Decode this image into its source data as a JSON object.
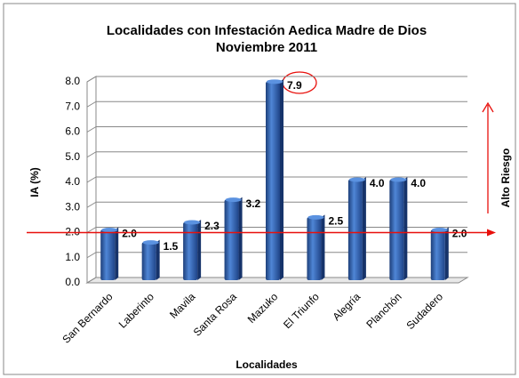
{
  "chart_data": {
    "type": "bar",
    "title": "Localidades con Infestación Aedica Madre de Dios",
    "subtitle": "Noviembre 2011",
    "x_label": "Localidades",
    "y_label": "IA (%)",
    "categories": [
      "San Bernardo",
      "Laberinto",
      "Mavila",
      "Santa Rosa",
      "Mazuko",
      "El Triunfo",
      "Alegría",
      "Planchón",
      "Sudadero"
    ],
    "values": [
      2.0,
      1.5,
      2.3,
      3.2,
      7.9,
      2.5,
      4.0,
      4.0,
      2.0
    ],
    "value_labels": [
      "2.0",
      "1.5",
      "2.3",
      "3.2",
      "7.9",
      "2.5",
      "4.0",
      "4.0",
      "2.0"
    ],
    "color": "#2e5fae",
    "ylim": [
      0,
      8
    ],
    "yticks": [
      {
        "value": 0,
        "label": "0.0"
      },
      {
        "value": 1,
        "label": "1.0"
      },
      {
        "value": 2,
        "label": "2.0"
      },
      {
        "value": 3,
        "label": "3.0"
      },
      {
        "value": 4,
        "label": "4.0"
      },
      {
        "value": 5,
        "label": "5.0"
      },
      {
        "value": 6,
        "label": "6.0"
      },
      {
        "value": 7,
        "label": "7.0"
      },
      {
        "value": 8,
        "label": "8.0"
      }
    ],
    "grid": true,
    "reference_line": {
      "value": 2,
      "color": "#e8100c",
      "label": "Alto Riesgo"
    }
  }
}
